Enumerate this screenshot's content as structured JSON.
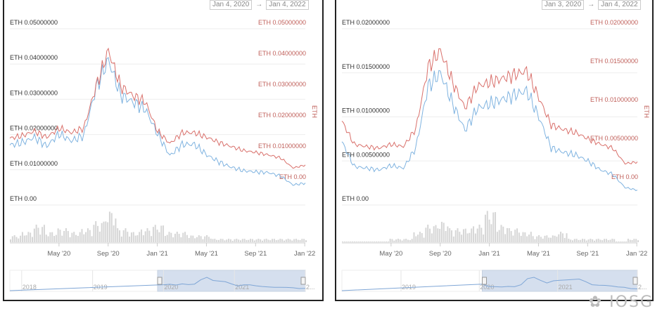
{
  "chart_data": [
    {
      "type": "line",
      "range_from": "Jan 4, 2020",
      "range_arrow": "→",
      "range_to": "Jan 4, 2022",
      "left_axis": {
        "ticks": [
          "ETH 0.00",
          "ETH 0.01000000",
          "ETH 0.02000000",
          "ETH 0.03000000",
          "ETH 0.04000000",
          "ETH 0.05000000"
        ],
        "ylim": [
          0,
          0.05
        ]
      },
      "right_axis": {
        "title": "ETH",
        "ticks": [
          "ETH 0.00",
          "ETH 0.01000000",
          "ETH 0.02000000",
          "ETH 0.03000000",
          "ETH 0.04000000",
          "ETH 0.05000000"
        ],
        "ylim": [
          0,
          0.05
        ]
      },
      "x_ticks": [
        "May '20",
        "Sep '20",
        "Jan '21",
        "May '21",
        "Sep '21",
        "Jan '22"
      ],
      "series": [
        {
          "name": "blue",
          "axis": "left",
          "color": "#7fb3e0",
          "values": [
            0.0158,
            0.0165,
            0.018,
            0.0155,
            0.019,
            0.017,
            0.0185,
            0.032,
            0.04,
            0.03,
            0.028,
            0.026,
            0.019,
            0.0128,
            0.016,
            0.016,
            0.013,
            0.011,
            0.0095,
            0.0085,
            0.0082,
            0.008,
            0.007,
            0.0045,
            0.005
          ]
        },
        {
          "name": "red",
          "axis": "right",
          "color": "#d9706b",
          "values": [
            0.0132,
            0.014,
            0.0155,
            0.0135,
            0.0165,
            0.015,
            0.0165,
            0.03,
            0.0416,
            0.03,
            0.027,
            0.025,
            0.0155,
            0.0115,
            0.015,
            0.015,
            0.0135,
            0.0118,
            0.0105,
            0.0092,
            0.0086,
            0.0078,
            0.0068,
            0.0036,
            0.0045
          ]
        }
      ],
      "volume": [
        2,
        3,
        5,
        3,
        4,
        3,
        4,
        6,
        9,
        4,
        3,
        4,
        5,
        3,
        3,
        2,
        2,
        1,
        1,
        1,
        1,
        1,
        1,
        1,
        1
      ],
      "navigator": {
        "labels": [
          "2018",
          "2019",
          "2020",
          "2021",
          "2..."
        ],
        "selected": [
          0.5,
          1.0
        ]
      }
    },
    {
      "type": "line",
      "range_from": "Jan 3, 2020",
      "range_arrow": "→",
      "range_to": "Jan 4, 2022",
      "left_axis": {
        "ticks": [
          "ETH 0.00",
          "ETH 0.00500000",
          "ETH 0.01000000",
          "ETH 0.01500000",
          "ETH 0.02000000"
        ],
        "ylim": [
          0,
          0.02
        ]
      },
      "right_axis": {
        "title": "ETH",
        "ticks": [
          "ETH 0.00",
          "ETH 0.00500000",
          "ETH 0.01000000",
          "ETH 0.01500000",
          "ETH 0.02000000"
        ],
        "ylim": [
          0,
          0.02
        ]
      },
      "x_ticks": [
        "May '20",
        "Sep '20",
        "Jan '21",
        "May '21",
        "Sep '21",
        "Jan '22"
      ],
      "series": [
        {
          "name": "blue",
          "axis": "left",
          "color": "#7fb3e0",
          "values": [
            0.0067,
            0.0039,
            0.0037,
            0.0035,
            0.004,
            0.0037,
            0.006,
            0.013,
            0.0145,
            0.011,
            0.008,
            0.0105,
            0.011,
            0.0115,
            0.012,
            0.0125,
            0.0095,
            0.006,
            0.0055,
            0.0052,
            0.0045,
            0.0035,
            0.003,
            0.0015,
            0.0012
          ]
        },
        {
          "name": "red",
          "axis": "right",
          "color": "#d9706b",
          "values": [
            0.0075,
            0.0045,
            0.0042,
            0.004,
            0.0045,
            0.0042,
            0.0065,
            0.0145,
            0.0166,
            0.0125,
            0.0092,
            0.012,
            0.0125,
            0.013,
            0.0135,
            0.014,
            0.0105,
            0.007,
            0.0064,
            0.006,
            0.0052,
            0.0045,
            0.004,
            0.002,
            0.0022
          ]
        }
      ],
      "volume": [
        0,
        0,
        0,
        0,
        1,
        1,
        3,
        5,
        6,
        4,
        4,
        5,
        9,
        5,
        4,
        3,
        2,
        2,
        3,
        1,
        1,
        1,
        1,
        0,
        1
      ],
      "navigator": {
        "labels": [
          "2019",
          "2020",
          "2021",
          "2..."
        ],
        "selected": [
          0.475,
          1.0
        ]
      }
    }
  ],
  "watermark": "IOSG"
}
